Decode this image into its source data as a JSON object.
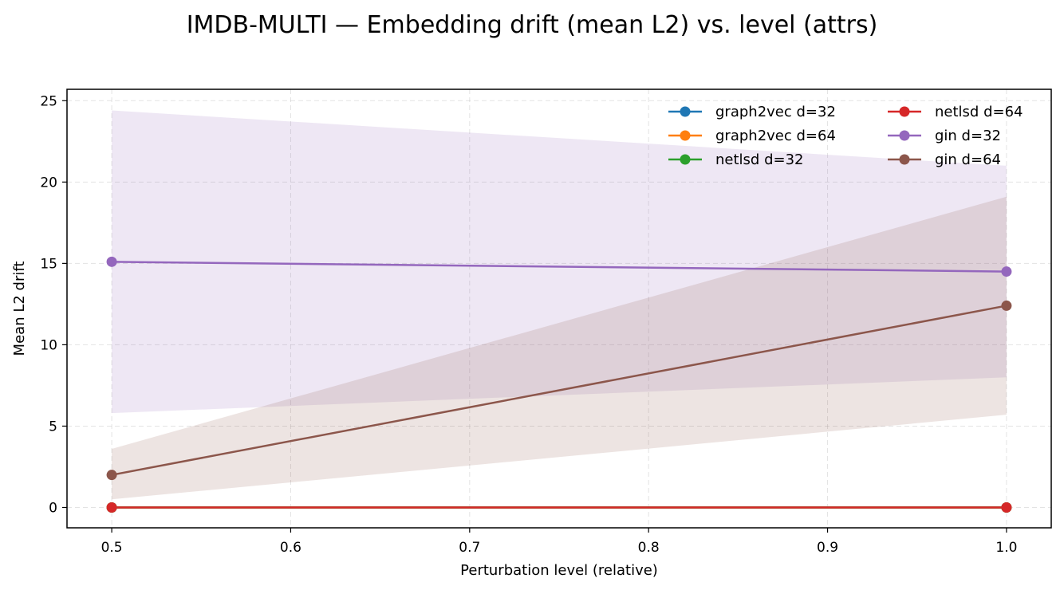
{
  "chart_data": {
    "type": "line",
    "title": "IMDB-MULTI — Embedding drift (mean L2) vs. level (attrs)",
    "xlabel": "Perturbation level (relative)",
    "ylabel": "Mean L2 drift",
    "x": [
      0.5,
      1.0
    ],
    "xlim": [
      0.475,
      1.025
    ],
    "ylim": [
      -1.25,
      25.7
    ],
    "x_ticks": [
      0.5,
      0.6,
      0.7,
      0.8,
      0.9,
      1.0
    ],
    "x_tick_labels": [
      "0.5",
      "0.6",
      "0.7",
      "0.8",
      "0.9",
      "1.0"
    ],
    "y_ticks": [
      0,
      5,
      10,
      15,
      20,
      25
    ],
    "y_tick_labels": [
      "0",
      "5",
      "10",
      "15",
      "20",
      "25"
    ],
    "grid": true,
    "legend_position": "top-right",
    "legend_columns": 2,
    "series": [
      {
        "name": "graph2vec d=32",
        "color": "#1f77b4",
        "values": [
          0,
          0
        ],
        "band": null
      },
      {
        "name": "graph2vec d=64",
        "color": "#ff7f0e",
        "values": [
          0,
          0
        ],
        "band": null
      },
      {
        "name": "netlsd d=32",
        "color": "#2ca02c",
        "values": [
          0,
          0
        ],
        "band": null
      },
      {
        "name": "netlsd d=64",
        "color": "#d62728",
        "values": [
          0,
          0
        ],
        "band": null
      },
      {
        "name": "gin d=32",
        "color": "#9467bd",
        "values": [
          15.1,
          14.5
        ],
        "band": {
          "lower": [
            5.8,
            8.0
          ],
          "upper": [
            24.4,
            21.0
          ]
        }
      },
      {
        "name": "gin d=64",
        "color": "#8c564b",
        "values": [
          2.0,
          12.4
        ],
        "band": {
          "lower": [
            0.5,
            5.7
          ],
          "upper": [
            3.6,
            19.1
          ]
        }
      }
    ]
  }
}
